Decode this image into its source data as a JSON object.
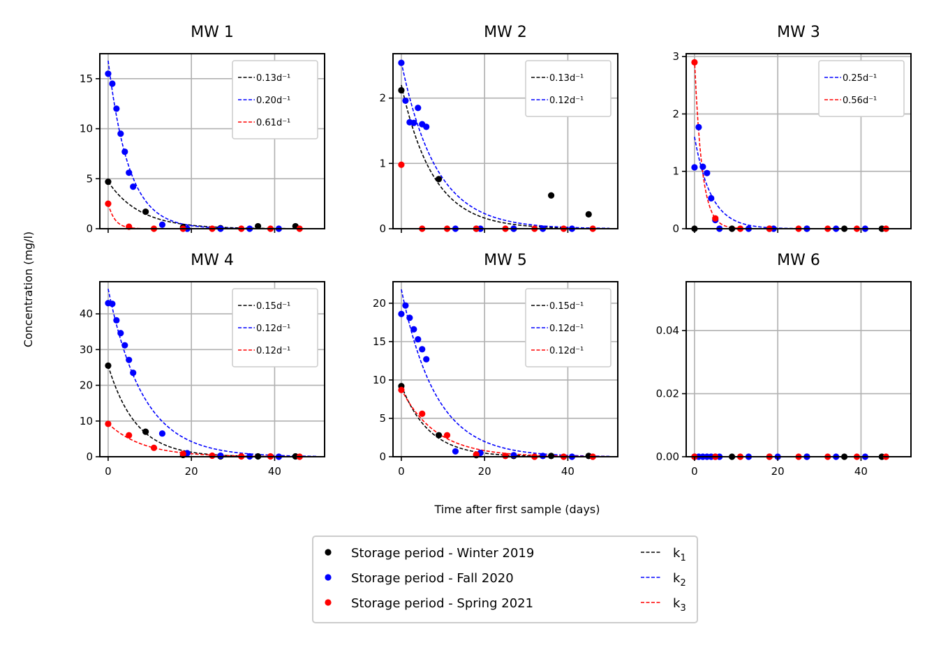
{
  "figure": {
    "ylabel": "Concentration (mg/l)",
    "xlabel": "Time after first sample (days)"
  },
  "legend": {
    "markers": [
      {
        "label": "Storage period - Winter 2019",
        "color": "#000000"
      },
      {
        "label": "Storage period - Fall 2020",
        "color": "#0000ff"
      },
      {
        "label": "Storage period - Spring 2021",
        "color": "#ff0000"
      }
    ],
    "lines": [
      {
        "label": "k",
        "sub": "1",
        "color": "#000000"
      },
      {
        "label": "k",
        "sub": "2",
        "color": "#0000ff"
      },
      {
        "label": "k",
        "sub": "3",
        "color": "#ff0000"
      }
    ]
  },
  "chart_data": [
    {
      "type": "scatter",
      "title": "MW 1",
      "xlim": [
        -2,
        52
      ],
      "ylim": [
        0,
        17.5
      ],
      "yticks": [
        0,
        5,
        10,
        15
      ],
      "ytick_labels": [
        "0",
        "5",
        "10",
        "15"
      ],
      "xticks": [
        0,
        20,
        40
      ],
      "xtick_labels": [],
      "legend": [
        {
          "label": "0.13d⁻¹",
          "color": "#000000"
        },
        {
          "label": "0.20d⁻¹",
          "color": "#0000ff"
        },
        {
          "label": "0.61d⁻¹",
          "color": "#ff0000"
        }
      ],
      "fits": [
        {
          "color": "#000000",
          "c0": 4.7,
          "k": 0.13
        },
        {
          "color": "#0000ff",
          "c0": 16.8,
          "k": 0.2
        },
        {
          "color": "#ff0000",
          "c0": 2.5,
          "k": 0.61
        }
      ],
      "series": [
        {
          "color": "#000000",
          "x": [
            0,
            9,
            18,
            27,
            36,
            45
          ],
          "y": [
            4.7,
            1.7,
            0.15,
            0.05,
            0.25,
            0.25
          ]
        },
        {
          "color": "#0000ff",
          "x": [
            0,
            1,
            2,
            3,
            4,
            5,
            6,
            13,
            19,
            27,
            34,
            41
          ],
          "y": [
            15.5,
            14.5,
            12,
            9.5,
            7.7,
            5.6,
            4.2,
            0.4,
            0,
            0,
            0,
            0
          ]
        },
        {
          "color": "#ff0000",
          "x": [
            0,
            5,
            11,
            18,
            25,
            32,
            39,
            46
          ],
          "y": [
            2.5,
            0.2,
            0,
            0,
            0,
            0,
            0,
            0
          ]
        }
      ]
    },
    {
      "type": "scatter",
      "title": "MW 2",
      "xlim": [
        -2,
        52
      ],
      "ylim": [
        0,
        2.68
      ],
      "yticks": [
        0,
        1,
        2
      ],
      "ytick_labels": [
        "0",
        "1",
        "2"
      ],
      "xticks": [
        0,
        20,
        40
      ],
      "xtick_labels": [],
      "legend": [
        {
          "label": "0.13d⁻¹",
          "color": "#000000"
        },
        {
          "label": "0.12d⁻¹",
          "color": "#0000ff"
        }
      ],
      "fits": [
        {
          "color": "#000000",
          "c0": 2.2,
          "k": 0.13
        },
        {
          "color": "#0000ff",
          "c0": 2.55,
          "k": 0.12
        }
      ],
      "series": [
        {
          "color": "#000000",
          "x": [
            0,
            9,
            18,
            27,
            36,
            45
          ],
          "y": [
            2.12,
            0.76,
            0,
            0,
            0.51,
            0.22
          ]
        },
        {
          "color": "#0000ff",
          "x": [
            0,
            1,
            2,
            3,
            4,
            5,
            6,
            13,
            19,
            27,
            34,
            41
          ],
          "y": [
            2.54,
            1.96,
            1.63,
            1.62,
            1.85,
            1.6,
            1.56,
            0,
            0,
            0,
            0,
            0
          ]
        },
        {
          "color": "#ff0000",
          "x": [
            0,
            5,
            11,
            18,
            25,
            32,
            39,
            46
          ],
          "y": [
            0.98,
            0,
            0,
            0,
            0,
            0,
            0,
            0
          ]
        }
      ]
    },
    {
      "type": "scatter",
      "title": "MW 3",
      "xlim": [
        -2,
        52
      ],
      "ylim": [
        0,
        3.05
      ],
      "yticks": [
        0,
        1,
        2,
        3
      ],
      "ytick_labels": [
        "0",
        "1",
        "2",
        "3"
      ],
      "xticks": [
        0,
        20,
        40
      ],
      "xtick_labels": [],
      "legend": [
        {
          "label": "0.25d⁻¹",
          "color": "#0000ff"
        },
        {
          "label": "0.56d⁻¹",
          "color": "#ff0000"
        }
      ],
      "fits": [
        {
          "color": "#0000ff",
          "c0": 1.6,
          "k": 0.25
        },
        {
          "color": "#ff0000",
          "c0": 2.95,
          "k": 0.56
        }
      ],
      "series": [
        {
          "color": "#000000",
          "x": [
            0,
            9,
            18,
            27,
            36,
            45
          ],
          "y": [
            0,
            0,
            0,
            0,
            0,
            0
          ]
        },
        {
          "color": "#0000ff",
          "x": [
            0,
            1,
            2,
            3,
            4,
            5,
            6,
            13,
            19,
            27,
            34,
            41
          ],
          "y": [
            1.07,
            1.77,
            1.08,
            0.97,
            0.53,
            0.15,
            0,
            0,
            0,
            0,
            0,
            0
          ]
        },
        {
          "color": "#ff0000",
          "x": [
            0,
            5,
            11,
            18,
            25,
            32,
            39,
            46
          ],
          "y": [
            2.9,
            0.18,
            0,
            0,
            0,
            0,
            0,
            0
          ]
        }
      ]
    },
    {
      "type": "scatter",
      "title": "MW 4",
      "xlim": [
        -2,
        52
      ],
      "ylim": [
        0,
        49
      ],
      "yticks": [
        0,
        10,
        20,
        30,
        40
      ],
      "ytick_labels": [
        "0",
        "10",
        "20",
        "30",
        "40"
      ],
      "xticks": [
        0,
        20,
        40
      ],
      "xtick_labels": [
        "0",
        "20",
        "40"
      ],
      "legend": [
        {
          "label": "0.15d⁻¹",
          "color": "#000000"
        },
        {
          "label": "0.12d⁻¹",
          "color": "#0000ff"
        },
        {
          "label": "0.12d⁻¹",
          "color": "#ff0000"
        }
      ],
      "fits": [
        {
          "color": "#000000",
          "c0": 25.5,
          "k": 0.15
        },
        {
          "color": "#0000ff",
          "c0": 47,
          "k": 0.12
        },
        {
          "color": "#ff0000",
          "c0": 9.3,
          "k": 0.12
        }
      ],
      "series": [
        {
          "color": "#000000",
          "x": [
            0,
            9,
            18,
            27,
            36,
            45
          ],
          "y": [
            25.5,
            7,
            0.5,
            0.1,
            0.1,
            0.1
          ]
        },
        {
          "color": "#0000ff",
          "x": [
            0,
            1,
            2,
            3,
            4,
            5,
            6,
            13,
            19,
            27,
            34,
            41
          ],
          "y": [
            43,
            42.8,
            38.2,
            34.6,
            31.2,
            27.1,
            23.5,
            6.5,
            1,
            0.3,
            0.1,
            0
          ]
        },
        {
          "color": "#ff0000",
          "x": [
            0,
            5,
            11,
            18,
            25,
            32,
            39,
            46
          ],
          "y": [
            9.2,
            6,
            2.5,
            0.8,
            0.3,
            0.1,
            0.1,
            0
          ]
        }
      ]
    },
    {
      "type": "scatter",
      "title": "MW 5",
      "xlim": [
        -2,
        52
      ],
      "ylim": [
        0,
        22.8
      ],
      "yticks": [
        0,
        5,
        10,
        15,
        20
      ],
      "ytick_labels": [
        "0",
        "5",
        "10",
        "15",
        "20"
      ],
      "xticks": [
        0,
        20,
        40
      ],
      "xtick_labels": [
        "0",
        "20",
        "40"
      ],
      "legend": [
        {
          "label": "0.15d⁻¹",
          "color": "#000000"
        },
        {
          "label": "0.12d⁻¹",
          "color": "#0000ff"
        },
        {
          "label": "0.12d⁻¹",
          "color": "#ff0000"
        }
      ],
      "fits": [
        {
          "color": "#000000",
          "c0": 9.3,
          "k": 0.15
        },
        {
          "color": "#0000ff",
          "c0": 21.8,
          "k": 0.12
        },
        {
          "color": "#ff0000",
          "c0": 8.8,
          "k": 0.12
        }
      ],
      "series": [
        {
          "color": "#000000",
          "x": [
            0,
            9,
            18,
            27,
            36,
            45
          ],
          "y": [
            9.2,
            2.8,
            0.2,
            0.1,
            0.1,
            0.1
          ]
        },
        {
          "color": "#0000ff",
          "x": [
            0,
            1,
            2,
            3,
            4,
            5,
            6,
            13,
            19,
            27,
            34,
            41
          ],
          "y": [
            18.6,
            19.7,
            18.1,
            16.6,
            15.3,
            14,
            12.7,
            0.7,
            0.5,
            0.2,
            0.1,
            0
          ]
        },
        {
          "color": "#ff0000",
          "x": [
            0,
            5,
            11,
            18,
            25,
            32,
            39,
            46
          ],
          "y": [
            8.7,
            5.6,
            2.8,
            0.3,
            0.1,
            0,
            0,
            0
          ]
        }
      ]
    },
    {
      "type": "scatter",
      "title": "MW 6",
      "xlim": [
        -2,
        52
      ],
      "ylim": [
        0,
        0.0555
      ],
      "yticks": [
        0,
        0.02,
        0.04
      ],
      "ytick_labels": [
        "0.00",
        "0.02",
        "0.04"
      ],
      "xticks": [
        0,
        20,
        40
      ],
      "xtick_labels": [
        "0",
        "20",
        "40"
      ],
      "legend": [],
      "fits": [],
      "series": [
        {
          "color": "#000000",
          "x": [
            0,
            9,
            18,
            27,
            36,
            45
          ],
          "y": [
            0,
            0,
            0,
            0,
            0,
            0
          ]
        },
        {
          "color": "#0000ff",
          "x": [
            0,
            1,
            2,
            3,
            4,
            5,
            6,
            13,
            20,
            27,
            34,
            41
          ],
          "y": [
            0,
            0,
            0,
            0,
            0,
            0,
            0,
            0,
            0,
            0,
            0,
            0
          ]
        },
        {
          "color": "#ff0000",
          "x": [
            0,
            5,
            11,
            18,
            25,
            32,
            39,
            46
          ],
          "y": [
            0,
            0,
            0,
            0,
            0,
            0,
            0,
            0
          ]
        }
      ]
    }
  ]
}
